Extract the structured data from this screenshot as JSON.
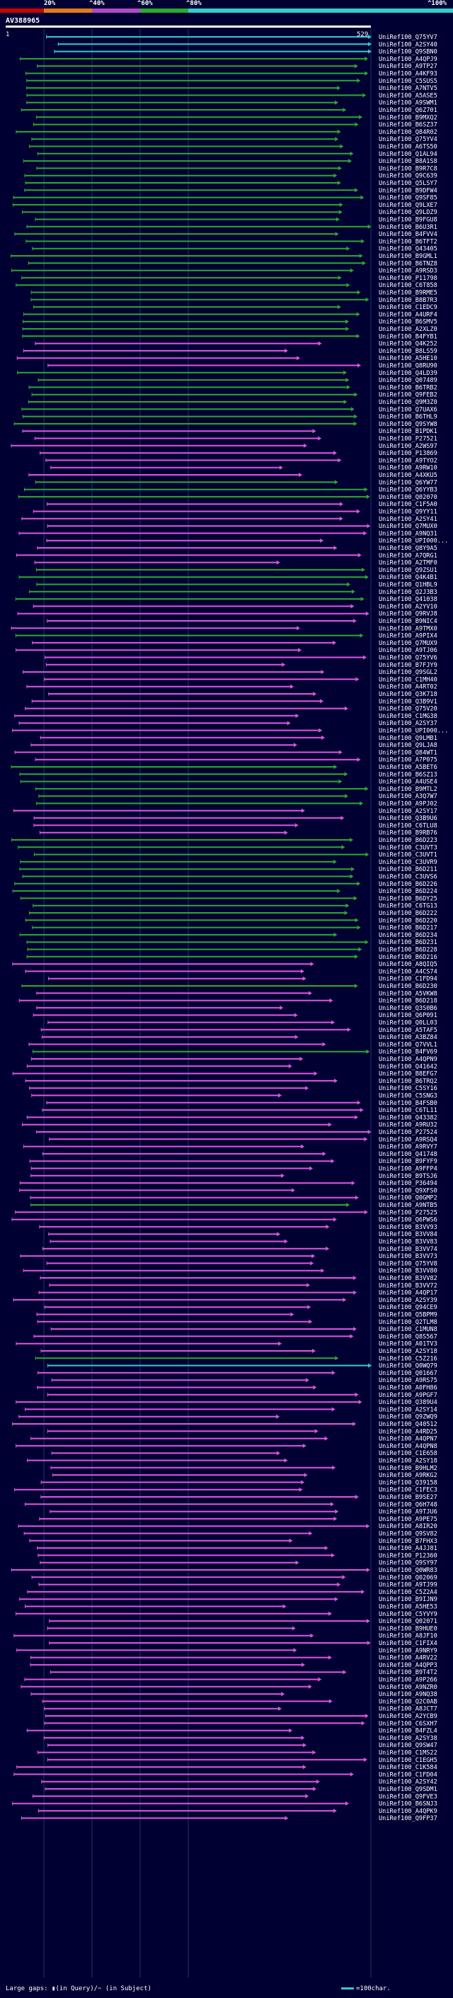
{
  "colors": {
    "background": "#000033",
    "red": "#cc0000",
    "orange": "#e07b1a",
    "purple": "#b04ac8",
    "green": "#2ea82e",
    "cyan": "#33cccc",
    "magenta": "#e055e0",
    "line": "#2a8a2a"
  },
  "scale": {
    "labels": [
      "20%",
      "^40%",
      "^60%",
      "^80%",
      "^100%"
    ],
    "segments": [
      "red",
      "orange",
      "purple",
      "green",
      "cyan"
    ]
  },
  "query": {
    "title": "AV388965",
    "start": "1",
    "end": "529"
  },
  "legend": {
    "text": "Large gaps: ▮(in Query)/~ (in Subject)",
    "scale": "=100char."
  },
  "hits": [
    {
      "label": "UniRef100_Q75YV7",
      "color": "cyan"
    },
    {
      "label": "UniRef100_A2SY40",
      "color": "cyan"
    },
    {
      "label": "UniRef100_Q9SBN0",
      "color": "cyan"
    },
    {
      "label": "UniRef100_A4QPJ9",
      "color": "green"
    },
    {
      "label": "UniRef100_A9TP27",
      "color": "green"
    },
    {
      "label": "UniRef100_A4KF93",
      "color": "green"
    },
    {
      "label": "UniRef100_C5SUS5",
      "color": "green"
    },
    {
      "label": "UniRef100_A7NTV5",
      "color": "green"
    },
    {
      "label": "UniRef100_A5ASE5",
      "color": "green"
    },
    {
      "label": "UniRef100_A9SWM1",
      "color": "green"
    },
    {
      "label": "UniRef100_Q6Z701",
      "color": "green"
    },
    {
      "label": "UniRef100_B9MXQ2",
      "color": "green"
    },
    {
      "label": "UniRef100_B6SZ37",
      "color": "green"
    },
    {
      "label": "UniRef100_Q84R02",
      "color": "green"
    },
    {
      "label": "UniRef100_Q75YV4",
      "color": "green"
    },
    {
      "label": "UniRef100_A6TS50",
      "color": "green"
    },
    {
      "label": "UniRef100_Q1AL94",
      "color": "green"
    },
    {
      "label": "UniRef100_B8A1S8",
      "color": "green"
    },
    {
      "label": "UniRef100_B9R7C8",
      "color": "green"
    },
    {
      "label": "UniRef100_Q9C639",
      "color": "green"
    },
    {
      "label": "UniRef100_Q5LSY7",
      "color": "green"
    },
    {
      "label": "UniRef100_B9DFW4",
      "color": "green"
    },
    {
      "label": "UniRef100_Q9SF85",
      "color": "green"
    },
    {
      "label": "UniRef100_Q9LXE7",
      "color": "green"
    },
    {
      "label": "UniRef100_Q9LDZ9",
      "color": "green"
    },
    {
      "label": "UniRef100_B9FGU8",
      "color": "green"
    },
    {
      "label": "UniRef100_B6U3R1",
      "color": "green"
    },
    {
      "label": "UniRef100_B4FVV4",
      "color": "green"
    },
    {
      "label": "UniRef100_B6TFT2",
      "color": "green"
    },
    {
      "label": "UniRef100_Q43405",
      "color": "green"
    },
    {
      "label": "UniRef100_B9GML1",
      "color": "green"
    },
    {
      "label": "UniRef100_B6TNZ8",
      "color": "green"
    },
    {
      "label": "UniRef100_A9RSD3",
      "color": "green"
    },
    {
      "label": "UniRef100_P11798",
      "color": "green"
    },
    {
      "label": "UniRef100_C6T858",
      "color": "green"
    },
    {
      "label": "UniRef100_B9RME5",
      "color": "green"
    },
    {
      "label": "UniRef100_B8B7R3",
      "color": "green"
    },
    {
      "label": "UniRef100_C1EDC9",
      "color": "green"
    },
    {
      "label": "UniRef100_A4URF4",
      "color": "green"
    },
    {
      "label": "UniRef100_B6SMV5",
      "color": "green"
    },
    {
      "label": "UniRef100_A2XLZ0",
      "color": "green"
    },
    {
      "label": "UniRef100_B4FYB1",
      "color": "green"
    },
    {
      "label": "UniRef100_Q4K252",
      "color": "magenta"
    },
    {
      "label": "UniRef100_B8LS59",
      "color": "magenta"
    },
    {
      "label": "UniRef100_A5HE10",
      "color": "magenta"
    },
    {
      "label": "UniRef100_Q8RU90",
      "color": "magenta"
    },
    {
      "label": "UniRef100_Q4LD39",
      "color": "green"
    },
    {
      "label": "UniRef100_Q07489",
      "color": "green"
    },
    {
      "label": "UniRef100_B6TRB2",
      "color": "green"
    },
    {
      "label": "UniRef100_Q9FEB2",
      "color": "green"
    },
    {
      "label": "UniRef100_Q9M3Z0",
      "color": "green"
    },
    {
      "label": "UniRef100_Q7UAX6",
      "color": "green"
    },
    {
      "label": "UniRef100_B6THL9",
      "color": "green"
    },
    {
      "label": "UniRef100_Q9SYW8",
      "color": "green"
    },
    {
      "label": "UniRef100_B1PDK1",
      "color": "magenta"
    },
    {
      "label": "UniRef100_P27521",
      "color": "magenta"
    },
    {
      "label": "UniRef100_A2WS97",
      "color": "magenta"
    },
    {
      "label": "UniRef100_P13869",
      "color": "magenta"
    },
    {
      "label": "UniRef100_A9TYO2",
      "color": "magenta"
    },
    {
      "label": "UniRef100_A9RW10",
      "color": "magenta"
    },
    {
      "label": "UniRef100_A4XKU5",
      "color": "magenta"
    },
    {
      "label": "UniRef100_Q6YW77",
      "color": "green"
    },
    {
      "label": "UniRef100_Q6YYB3",
      "color": "green"
    },
    {
      "label": "UniRef100_Q02070",
      "color": "green"
    },
    {
      "label": "UniRef100_C1F5A0",
      "color": "magenta"
    },
    {
      "label": "UniRef100_Q9YY11",
      "color": "magenta"
    },
    {
      "label": "UniRef100_A2SY41",
      "color": "magenta"
    },
    {
      "label": "UniRef100_Q7MUX0",
      "color": "magenta"
    },
    {
      "label": "UniRef100_A9NQ31",
      "color": "magenta"
    },
    {
      "label": "UniRef100_UPI000...",
      "color": "magenta"
    },
    {
      "label": "UniRef100_Q8Y9A5",
      "color": "magenta"
    },
    {
      "label": "UniRef100_A7QRG1",
      "color": "magenta"
    },
    {
      "label": "UniRef100_A2TMF0",
      "color": "magenta"
    },
    {
      "label": "UniRef100_Q9ZSU1",
      "color": "green"
    },
    {
      "label": "UniRef100_Q4K4B1",
      "color": "green"
    },
    {
      "label": "UniRef100_Q1HBL9",
      "color": "green"
    },
    {
      "label": "UniRef100_Q2J3B3",
      "color": "green"
    },
    {
      "label": "UniRef100_Q41038",
      "color": "green"
    },
    {
      "label": "UniRef100_A2YV10",
      "color": "magenta"
    },
    {
      "label": "UniRef100_Q9RVJ8",
      "color": "magenta"
    },
    {
      "label": "UniRef100_B9NIC4",
      "color": "magenta"
    },
    {
      "label": "UniRef100_A9TMX0",
      "color": "magenta"
    },
    {
      "label": "UniRef100_A9PIX4",
      "color": "green"
    },
    {
      "label": "UniRef100_Q7MUX9",
      "color": "magenta"
    },
    {
      "label": "UniRef100_A9TJ06",
      "color": "magenta"
    },
    {
      "label": "UniRef100_Q75YV6",
      "color": "magenta"
    },
    {
      "label": "UniRef100_B7FJY9",
      "color": "magenta"
    },
    {
      "label": "UniRef100_Q9SGL2",
      "color": "magenta"
    },
    {
      "label": "UniRef100_C1MH40",
      "color": "magenta"
    },
    {
      "label": "UniRef100_A4RT02",
      "color": "magenta"
    },
    {
      "label": "UniRef100_Q3K718",
      "color": "magenta"
    },
    {
      "label": "UniRef100_Q3B9V1",
      "color": "magenta"
    },
    {
      "label": "UniRef100_Q75V20",
      "color": "magenta"
    },
    {
      "label": "UniRef100_C1MG38",
      "color": "magenta"
    },
    {
      "label": "UniRef100_A2SY37",
      "color": "magenta"
    },
    {
      "label": "UniRef100_UPI000...",
      "color": "magenta"
    },
    {
      "label": "UniRef100_Q9LMB1",
      "color": "magenta"
    },
    {
      "label": "UniRef100_Q9LJA8",
      "color": "magenta"
    },
    {
      "label": "UniRef100_Q84WT1",
      "color": "magenta"
    },
    {
      "label": "UniRef100_A7P075",
      "color": "magenta"
    },
    {
      "label": "UniRef100_A5BET6",
      "color": "green"
    },
    {
      "label": "UniRef100_B6SZ13",
      "color": "green"
    },
    {
      "label": "UniRef100_A4USE4",
      "color": "green"
    },
    {
      "label": "UniRef100_B9MTL2",
      "color": "green"
    },
    {
      "label": "UniRef100_A3Q7W7",
      "color": "green"
    },
    {
      "label": "UniRef100_A9PJ02",
      "color": "green"
    },
    {
      "label": "UniRef100_A2SY17",
      "color": "magenta"
    },
    {
      "label": "UniRef100_Q3B9U6",
      "color": "magenta"
    },
    {
      "label": "UniRef100_C6TLU8",
      "color": "magenta"
    },
    {
      "label": "UniRef100_B9RB76",
      "color": "magenta"
    },
    {
      "label": "UniRef100_B6D223",
      "color": "green"
    },
    {
      "label": "UniRef100_C3UVT3",
      "color": "green"
    },
    {
      "label": "UniRef100_C3UVT1",
      "color": "green"
    },
    {
      "label": "UniRef100_C3UVR9",
      "color": "green"
    },
    {
      "label": "UniRef100_B6D211",
      "color": "green"
    },
    {
      "label": "UniRef100_C3UVS6",
      "color": "green"
    },
    {
      "label": "UniRef100_B6D226",
      "color": "green"
    },
    {
      "label": "UniRef100_B6D224",
      "color": "green"
    },
    {
      "label": "UniRef100_B6DY25",
      "color": "green"
    },
    {
      "label": "UniRef100_C6TG13",
      "color": "green"
    },
    {
      "label": "UniRef100_B6D222",
      "color": "green"
    },
    {
      "label": "UniRef100_B6D220",
      "color": "green"
    },
    {
      "label": "UniRef100_B6D217",
      "color": "green"
    },
    {
      "label": "UniRef100_B6D234",
      "color": "green"
    },
    {
      "label": "UniRef100_B6D231",
      "color": "green"
    },
    {
      "label": "UniRef100_B6D228",
      "color": "green"
    },
    {
      "label": "UniRef100_B6D216",
      "color": "green"
    },
    {
      "label": "UniRef100_A8QIQ5",
      "color": "magenta"
    },
    {
      "label": "UniRef100_A4CS74",
      "color": "magenta"
    },
    {
      "label": "UniRef100_C1FD94",
      "color": "magenta"
    },
    {
      "label": "UniRef100_B6D230",
      "color": "green"
    },
    {
      "label": "UniRef100_A5VKW8",
      "color": "magenta"
    },
    {
      "label": "UniRef100_B6D218",
      "color": "magenta"
    },
    {
      "label": "UniRef100_Q3S0B6",
      "color": "magenta"
    },
    {
      "label": "UniRef100_Q6P091",
      "color": "magenta"
    },
    {
      "label": "UniRef100_Q0LL03",
      "color": "magenta"
    },
    {
      "label": "UniRef100_A5TAF5",
      "color": "magenta"
    },
    {
      "label": "UniRef100_A3BZ84",
      "color": "magenta"
    },
    {
      "label": "UniRef100_Q7VVL1",
      "color": "magenta"
    },
    {
      "label": "UniRef100_B4FV69",
      "color": "green"
    },
    {
      "label": "UniRef100_A4QPN9",
      "color": "magenta"
    },
    {
      "label": "UniRef100_Q41642",
      "color": "magenta"
    },
    {
      "label": "UniRef100_B8EFG7",
      "color": "magenta"
    },
    {
      "label": "UniRef100_B6TRQ2",
      "color": "magenta"
    },
    {
      "label": "UniRef100_C5SY16",
      "color": "magenta"
    },
    {
      "label": "UniRef100_C5SNG3",
      "color": "magenta"
    },
    {
      "label": "UniRef100_B4FSB0",
      "color": "magenta"
    },
    {
      "label": "UniRef100_C6TL11",
      "color": "magenta"
    },
    {
      "label": "UniRef100_Q43382",
      "color": "magenta"
    },
    {
      "label": "UniRef100_A9RU32",
      "color": "magenta"
    },
    {
      "label": "UniRef100_P27524",
      "color": "magenta"
    },
    {
      "label": "UniRef100_A9RSQ4",
      "color": "magenta"
    },
    {
      "label": "UniRef100_A9RVY7",
      "color": "magenta"
    },
    {
      "label": "UniRef100_Q41748",
      "color": "magenta"
    },
    {
      "label": "UniRef100_B9FYF9",
      "color": "magenta"
    },
    {
      "label": "UniRef100_A9FFP4",
      "color": "magenta"
    },
    {
      "label": "UniRef100_B9TSJ6",
      "color": "magenta"
    },
    {
      "label": "UniRef100_P36494",
      "color": "magenta"
    },
    {
      "label": "UniRef100_Q9XFS0",
      "color": "magenta"
    },
    {
      "label": "UniRef100_Q0GMP2",
      "color": "magenta"
    },
    {
      "label": "UniRef100_A9NTB5",
      "color": "green"
    },
    {
      "label": "UniRef100_P27525",
      "color": "magenta"
    },
    {
      "label": "UniRef100_Q6PWS6",
      "color": "magenta"
    },
    {
      "label": "UniRef100_B3VV93",
      "color": "magenta"
    },
    {
      "label": "UniRef100_B3VV84",
      "color": "magenta"
    },
    {
      "label": "UniRef100_B3VV83",
      "color": "magenta"
    },
    {
      "label": "UniRef100_B3VV74",
      "color": "magenta"
    },
    {
      "label": "UniRef100_B3VV73",
      "color": "magenta"
    },
    {
      "label": "UniRef100_Q75YV8",
      "color": "magenta"
    },
    {
      "label": "UniRef100_B3VV80",
      "color": "magenta"
    },
    {
      "label": "UniRef100_B3VV82",
      "color": "magenta"
    },
    {
      "label": "UniRef100_B3VV72",
      "color": "magenta"
    },
    {
      "label": "UniRef100_A4QP17",
      "color": "magenta"
    },
    {
      "label": "UniRef100_A2SY39",
      "color": "magenta"
    },
    {
      "label": "UniRef100_Q94CE9",
      "color": "magenta"
    },
    {
      "label": "UniRef100_Q5BPM9",
      "color": "magenta"
    },
    {
      "label": "UniRef100_Q2TLM8",
      "color": "magenta"
    },
    {
      "label": "UniRef100_C1MUN8",
      "color": "magenta"
    },
    {
      "label": "UniRef100_Q8S567",
      "color": "magenta"
    },
    {
      "label": "UniRef100_A01TV3",
      "color": "magenta"
    },
    {
      "label": "UniRef100_A2SY18",
      "color": "magenta"
    },
    {
      "label": "UniRef100_C5Z216",
      "color": "green"
    },
    {
      "label": "UniRef100_Q0WQ79",
      "color": "cyan"
    },
    {
      "label": "UniRef100_Q01667",
      "color": "magenta"
    },
    {
      "label": "UniRef100_A9RS75",
      "color": "magenta"
    },
    {
      "label": "UniRef100_A0FH86",
      "color": "magenta"
    },
    {
      "label": "UniRef100_A9PGF7",
      "color": "magenta"
    },
    {
      "label": "UniRef100_Q389U4",
      "color": "magenta"
    },
    {
      "label": "UniRef100_A2SY14",
      "color": "magenta"
    },
    {
      "label": "UniRef100_Q9ZWQ9",
      "color": "magenta"
    },
    {
      "label": "UniRef100_Q40512",
      "color": "magenta"
    },
    {
      "label": "UniRef100_A4RD25",
      "color": "magenta"
    },
    {
      "label": "UniRef100_A4QPN7",
      "color": "magenta"
    },
    {
      "label": "UniRef100_A4QPN8",
      "color": "magenta"
    },
    {
      "label": "UniRef100_C1E658",
      "color": "magenta"
    },
    {
      "label": "UniRef100_A2SY18",
      "color": "magenta"
    },
    {
      "label": "UniRef100_B9HLM2",
      "color": "magenta"
    },
    {
      "label": "UniRef100_A9RKG2",
      "color": "magenta"
    },
    {
      "label": "UniRef100_Q39158",
      "color": "magenta"
    },
    {
      "label": "UniRef100_C1FEC3",
      "color": "magenta"
    },
    {
      "label": "UniRef100_B9SE27",
      "color": "magenta"
    },
    {
      "label": "UniRef100_Q6H748",
      "color": "magenta"
    },
    {
      "label": "UniRef100_A9TJU6",
      "color": "magenta"
    },
    {
      "label": "UniRef100_A9PE75",
      "color": "magenta"
    },
    {
      "label": "UniRef100_A8IR20",
      "color": "magenta"
    },
    {
      "label": "UniRef100_Q9SV82",
      "color": "magenta"
    },
    {
      "label": "UniRef100_B7FHX3",
      "color": "magenta"
    },
    {
      "label": "UniRef100_A4JJ81",
      "color": "magenta"
    },
    {
      "label": "UniRef100_P12360",
      "color": "magenta"
    },
    {
      "label": "UniRef100_Q9SY97",
      "color": "magenta"
    },
    {
      "label": "UniRef100_Q0WR83",
      "color": "magenta"
    },
    {
      "label": "UniRef100_Q02069",
      "color": "magenta"
    },
    {
      "label": "UniRef100_A9TJ99",
      "color": "magenta"
    },
    {
      "label": "UniRef100_C5Z2A4",
      "color": "magenta"
    },
    {
      "label": "UniRef100_B9IJN9",
      "color": "magenta"
    },
    {
      "label": "UniRef100_A5HE53",
      "color": "magenta"
    },
    {
      "label": "UniRef100_C5YVY9",
      "color": "magenta"
    },
    {
      "label": "UniRef100_Q02071",
      "color": "magenta"
    },
    {
      "label": "UniRef100_B9HUE0",
      "color": "magenta"
    },
    {
      "label": "UniRef100_A8JF10",
      "color": "magenta"
    },
    {
      "label": "UniRef100_C1FIX4",
      "color": "magenta"
    },
    {
      "label": "UniRef100_A9NRY9",
      "color": "magenta"
    },
    {
      "label": "UniRef100_A4RV22",
      "color": "magenta"
    },
    {
      "label": "UniRef100_A4QPP3",
      "color": "magenta"
    },
    {
      "label": "UniRef100_B9T4T2",
      "color": "magenta"
    },
    {
      "label": "UniRef100_A9P266",
      "color": "magenta"
    },
    {
      "label": "UniRef100_A9NZR0",
      "color": "magenta"
    },
    {
      "label": "UniRef100_A9NQ38",
      "color": "magenta"
    },
    {
      "label": "UniRef100_Q2C0AB",
      "color": "magenta"
    },
    {
      "label": "UniRef100_A8JCT7",
      "color": "magenta"
    },
    {
      "label": "UniRef100_A2YCB9",
      "color": "magenta"
    },
    {
      "label": "UniRef100_C6SXH7",
      "color": "magenta"
    },
    {
      "label": "UniRef100_B4FZL4",
      "color": "magenta"
    },
    {
      "label": "UniRef100_A2SY38",
      "color": "magenta"
    },
    {
      "label": "UniRef100_Q9SW47",
      "color": "magenta"
    },
    {
      "label": "UniRef100_C1MS22",
      "color": "magenta"
    },
    {
      "label": "UniRef100_C1EGH5",
      "color": "magenta"
    },
    {
      "label": "UniRef100_C1K584",
      "color": "magenta"
    },
    {
      "label": "UniRef100_C1FD04",
      "color": "magenta"
    },
    {
      "label": "UniRef100_A2SY42",
      "color": "magenta"
    },
    {
      "label": "UniRef100_Q9SDM1",
      "color": "magenta"
    },
    {
      "label": "UniRef100_Q9FVE3",
      "color": "magenta"
    },
    {
      "label": "UniRef100_B6SNJ3",
      "color": "magenta"
    },
    {
      "label": "UniRef100_A4QPK9",
      "color": "magenta"
    },
    {
      "label": "UniRef100_Q9FP37",
      "color": "magenta"
    }
  ]
}
